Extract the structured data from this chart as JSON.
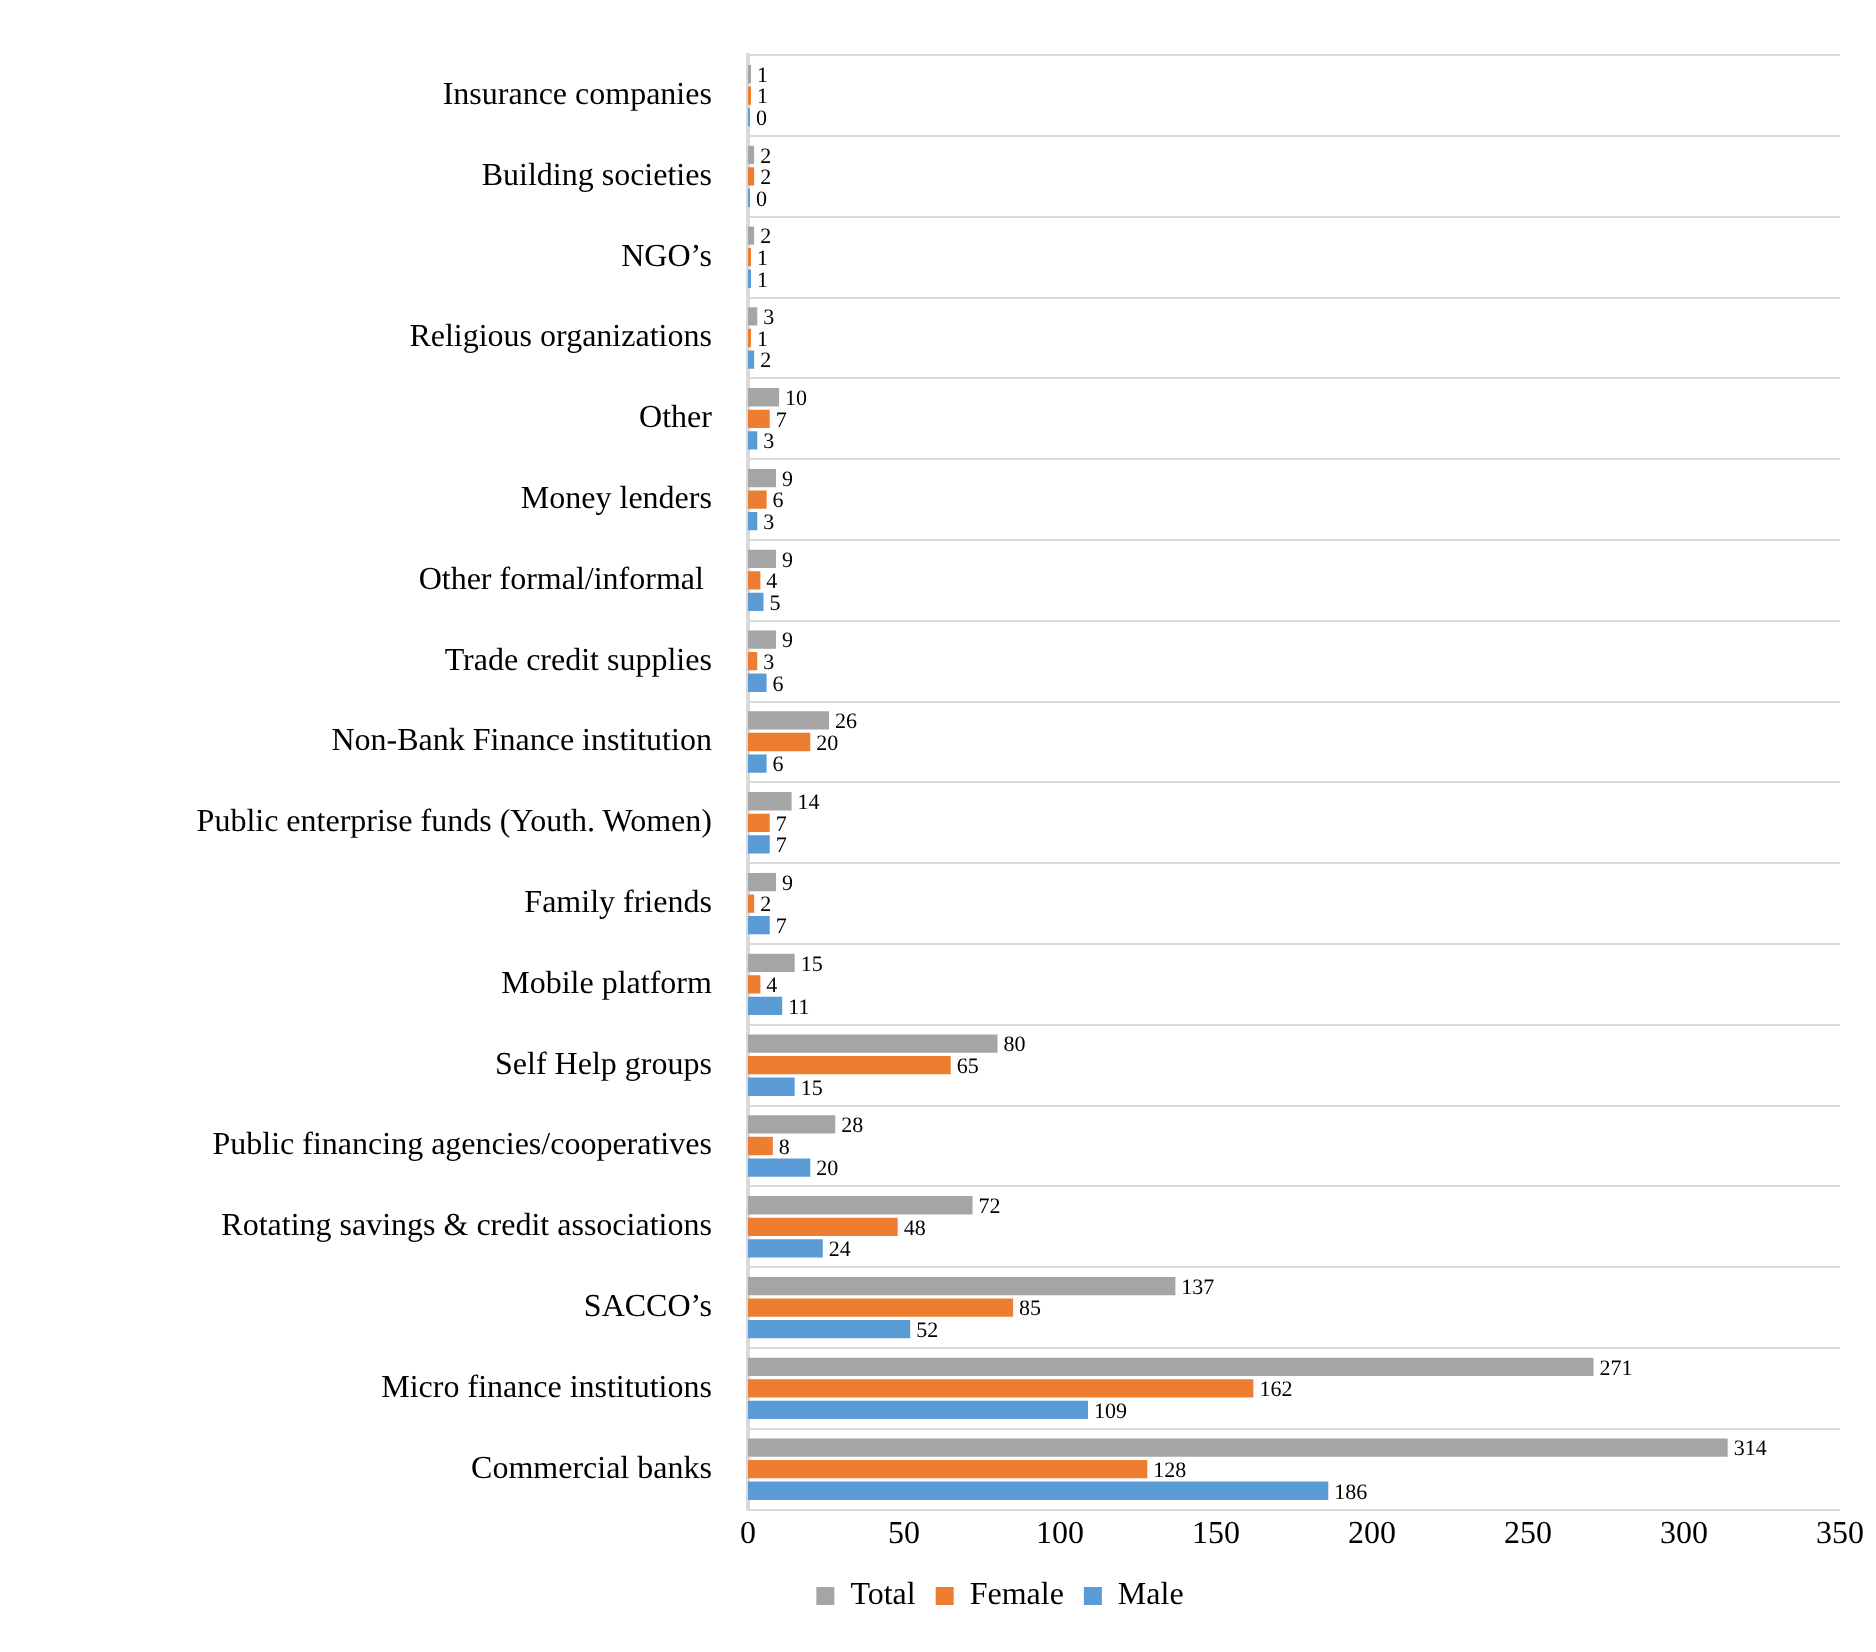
{
  "chart_data": {
    "type": "bar",
    "orientation": "horizontal",
    "categories": [
      "Insurance companies",
      "Building societies",
      "NGO’s",
      "Religious organizations",
      "Other",
      "Money lenders",
      "Other formal/informal ",
      "Trade credit supplies",
      "Non-Bank Finance institution",
      "Public enterprise funds (Youth. Women)",
      "Family friends",
      "Mobile platform",
      "Self Help groups",
      "Public financing agencies/cooperatives",
      "Rotating savings & credit associations",
      "SACCO’s",
      "Micro finance institutions",
      "Commercial banks"
    ],
    "series": [
      {
        "name": "Total",
        "color": "#a5a5a5",
        "values": [
          1,
          2,
          2,
          3,
          10,
          9,
          9,
          9,
          26,
          14,
          9,
          15,
          80,
          28,
          72,
          137,
          271,
          314
        ]
      },
      {
        "name": "Female",
        "color": "#ed7d31",
        "values": [
          1,
          2,
          1,
          1,
          7,
          6,
          4,
          3,
          20,
          7,
          2,
          4,
          65,
          8,
          48,
          85,
          162,
          128
        ]
      },
      {
        "name": "Male",
        "color": "#5b9bd5",
        "values": [
          0,
          0,
          1,
          2,
          3,
          3,
          5,
          6,
          6,
          7,
          7,
          11,
          15,
          20,
          24,
          52,
          109,
          186
        ]
      }
    ],
    "xlim": [
      0,
      350
    ],
    "xticks": [
      0,
      50,
      100,
      150,
      200,
      250,
      300,
      350
    ],
    "grid": "y",
    "legend": "bottom",
    "data_labels": true
  }
}
